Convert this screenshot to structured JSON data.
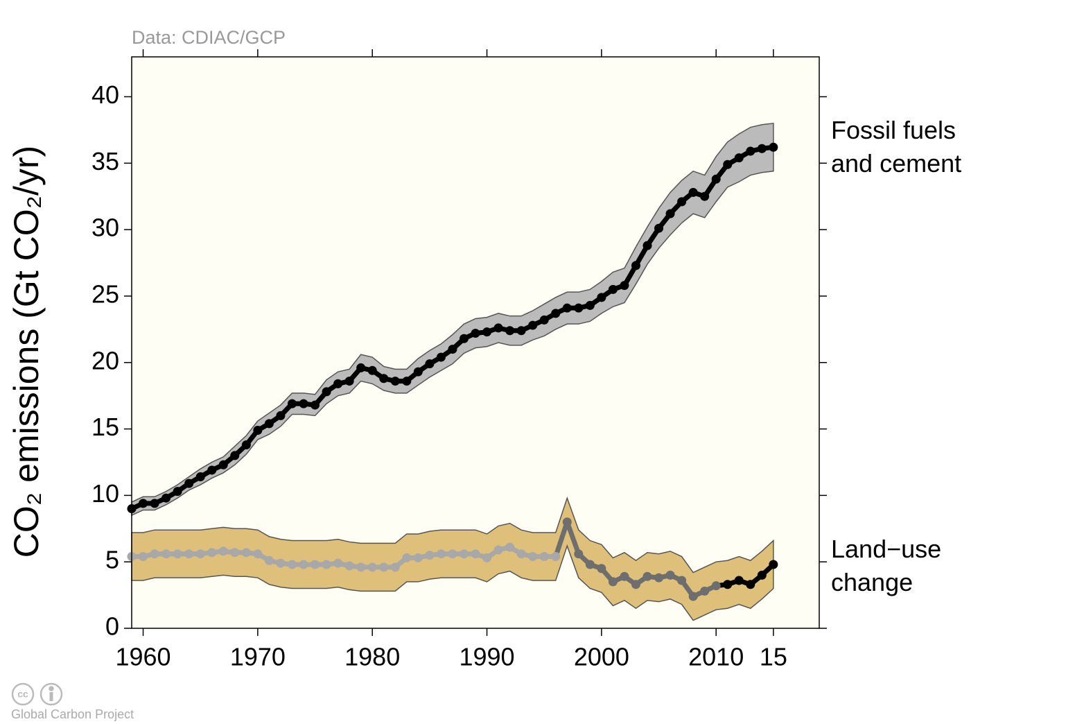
{
  "chart_data": {
    "type": "line",
    "source": "Data: CDIAC/GCP",
    "ylabel": "CO₂ emissions (Gt CO₂/yr)",
    "footer": "Global Carbon Project",
    "x": [
      1959,
      1960,
      1961,
      1962,
      1963,
      1964,
      1965,
      1966,
      1967,
      1968,
      1969,
      1970,
      1971,
      1972,
      1973,
      1974,
      1975,
      1976,
      1977,
      1978,
      1979,
      1980,
      1981,
      1982,
      1983,
      1984,
      1985,
      1986,
      1987,
      1988,
      1989,
      1990,
      1991,
      1992,
      1993,
      1994,
      1995,
      1996,
      1997,
      1998,
      1999,
      2000,
      2001,
      2002,
      2003,
      2004,
      2005,
      2006,
      2007,
      2008,
      2009,
      2010,
      2011,
      2012,
      2013,
      2014,
      2015
    ],
    "series": [
      {
        "name": "Fossil fuels and cement",
        "color": "#000000",
        "band_color": "#bbbbbb",
        "values": [
          9.0,
          9.4,
          9.4,
          9.8,
          10.3,
          10.9,
          11.4,
          11.9,
          12.3,
          13.0,
          13.8,
          14.9,
          15.4,
          16.0,
          16.9,
          16.9,
          16.8,
          17.8,
          18.4,
          18.6,
          19.6,
          19.4,
          18.8,
          18.6,
          18.6,
          19.3,
          19.9,
          20.4,
          21.0,
          21.8,
          22.2,
          22.3,
          22.6,
          22.4,
          22.4,
          22.8,
          23.2,
          23.7,
          24.1,
          24.1,
          24.3,
          24.9,
          25.5,
          25.8,
          27.3,
          28.8,
          30.1,
          31.2,
          32.1,
          32.8,
          32.5,
          33.8,
          34.9,
          35.4,
          35.9,
          36.1,
          36.2
        ],
        "errors": [
          0.5,
          0.5,
          0.5,
          0.5,
          0.5,
          0.5,
          0.6,
          0.6,
          0.6,
          0.7,
          0.7,
          0.7,
          0.8,
          0.8,
          0.8,
          0.8,
          0.8,
          0.9,
          0.9,
          0.9,
          1.0,
          1.0,
          0.9,
          0.9,
          0.9,
          1.0,
          1.0,
          1.0,
          1.1,
          1.1,
          1.1,
          1.1,
          1.1,
          1.1,
          1.1,
          1.1,
          1.2,
          1.2,
          1.2,
          1.2,
          1.2,
          1.2,
          1.3,
          1.3,
          1.4,
          1.4,
          1.5,
          1.6,
          1.6,
          1.6,
          1.6,
          1.7,
          1.7,
          1.8,
          1.8,
          1.8,
          1.8
        ]
      },
      {
        "name": "Land−use change",
        "color": "#000000",
        "band_color": "#dfc07a",
        "segment_breaks": [
          1996,
          2010
        ],
        "segment_colors": [
          "#a8a8a8",
          "#6e6e6e",
          "#000000"
        ],
        "values": [
          5.4,
          5.4,
          5.6,
          5.6,
          5.6,
          5.6,
          5.6,
          5.7,
          5.8,
          5.7,
          5.7,
          5.6,
          5.1,
          4.9,
          4.8,
          4.8,
          4.8,
          4.8,
          4.9,
          4.7,
          4.6,
          4.6,
          4.6,
          4.6,
          5.3,
          5.3,
          5.5,
          5.6,
          5.6,
          5.6,
          5.6,
          5.3,
          5.9,
          6.1,
          5.6,
          5.4,
          5.4,
          5.4,
          8.0,
          5.6,
          4.8,
          4.5,
          3.5,
          3.9,
          3.3,
          3.9,
          3.8,
          4.0,
          3.6,
          2.4,
          2.8,
          3.2,
          3.3,
          3.6,
          3.3,
          4.0,
          4.8
        ],
        "error": 1.8
      }
    ],
    "xlim": [
      1959,
      2019
    ],
    "xticks": [
      1960,
      1970,
      1980,
      1990,
      2000,
      2010,
      {
        "value": 2015,
        "label": "15"
      }
    ],
    "ylim": [
      0,
      43
    ],
    "yticks": [
      0,
      5,
      10,
      15,
      20,
      25,
      30,
      35,
      40
    ],
    "background": "#fefef4"
  }
}
